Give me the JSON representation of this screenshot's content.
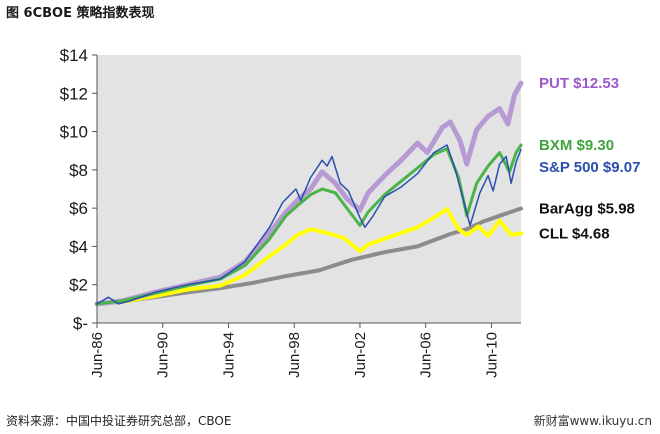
{
  "figure": {
    "title": "图  6CBOE 策略指数表现",
    "source": "资料来源：中国中投证券研究总部，CBOE",
    "watermark": "新财富www.ikuyu.cn"
  },
  "chart_data": {
    "type": "line",
    "title": "",
    "xlabel": "",
    "ylabel": "",
    "x_start": 1986.5,
    "x_end": 2012.3,
    "ylim": [
      0,
      14
    ],
    "y_ticks": [
      {
        "value": 14,
        "label": "$14"
      },
      {
        "value": 12,
        "label": "$12"
      },
      {
        "value": 10,
        "label": "$10"
      },
      {
        "value": 8,
        "label": "$8"
      },
      {
        "value": 6,
        "label": "$6"
      },
      {
        "value": 4,
        "label": "$4"
      },
      {
        "value": 2,
        "label": "$2"
      },
      {
        "value": 0,
        "label": "$-"
      }
    ],
    "x_ticks": [
      {
        "value": 1986.5,
        "label": "Jun-86"
      },
      {
        "value": 1990.5,
        "label": "Jun-90"
      },
      {
        "value": 1994.5,
        "label": "Jun-94"
      },
      {
        "value": 1998.5,
        "label": "Jun-98"
      },
      {
        "value": 2002.5,
        "label": "Jun-02"
      },
      {
        "value": 2006.5,
        "label": "Jun-06"
      },
      {
        "value": 2010.5,
        "label": "Jun-10"
      }
    ],
    "grid": false,
    "plot_background": "#e3e3e3",
    "series": [
      {
        "name": "BarAgg",
        "end_label": "BarAgg $5.98",
        "color": "#8c8c8c",
        "label_color": "#111111",
        "width": 4,
        "points": [
          [
            1986.5,
            1.0
          ],
          [
            1988,
            1.12
          ],
          [
            1990,
            1.35
          ],
          [
            1992,
            1.6
          ],
          [
            1994,
            1.82
          ],
          [
            1996,
            2.1
          ],
          [
            1998,
            2.45
          ],
          [
            2000,
            2.75
          ],
          [
            2002,
            3.3
          ],
          [
            2004,
            3.7
          ],
          [
            2006,
            4.0
          ],
          [
            2008,
            4.65
          ],
          [
            2009,
            4.9
          ],
          [
            2010,
            5.3
          ],
          [
            2011,
            5.6
          ],
          [
            2012.3,
            5.98
          ]
        ]
      },
      {
        "name": "CLL",
        "end_label": "CLL $4.68",
        "color": "#ffff00",
        "label_color": "#111111",
        "width": 4,
        "points": [
          [
            1986.5,
            1.0
          ],
          [
            1988,
            1.1
          ],
          [
            1990,
            1.4
          ],
          [
            1992,
            1.75
          ],
          [
            1994,
            1.95
          ],
          [
            1995.5,
            2.5
          ],
          [
            1997,
            3.5
          ],
          [
            1998,
            4.1
          ],
          [
            1998.7,
            4.6
          ],
          [
            1999.5,
            4.9
          ],
          [
            2000.5,
            4.7
          ],
          [
            2001.5,
            4.45
          ],
          [
            2002.5,
            3.75
          ],
          [
            2003,
            4.1
          ],
          [
            2004,
            4.4
          ],
          [
            2005,
            4.7
          ],
          [
            2006,
            5.0
          ],
          [
            2007,
            5.5
          ],
          [
            2007.8,
            5.95
          ],
          [
            2008.5,
            4.9
          ],
          [
            2009,
            4.6
          ],
          [
            2009.7,
            5.05
          ],
          [
            2010.3,
            4.55
          ],
          [
            2011,
            5.35
          ],
          [
            2011.7,
            4.6
          ],
          [
            2012.3,
            4.68
          ]
        ]
      },
      {
        "name": "PUT",
        "end_label": "PUT $12.53",
        "color": "#b79ad3",
        "label_color": "#9b59c9",
        "width": 5,
        "points": [
          [
            1986.5,
            1.0
          ],
          [
            1988,
            1.15
          ],
          [
            1990,
            1.6
          ],
          [
            1992,
            2.0
          ],
          [
            1994,
            2.4
          ],
          [
            1995.5,
            3.2
          ],
          [
            1997,
            4.7
          ],
          [
            1998,
            5.8
          ],
          [
            1998.8,
            6.5
          ],
          [
            1999.5,
            7.0
          ],
          [
            2000.2,
            7.9
          ],
          [
            2001,
            7.3
          ],
          [
            2001.7,
            6.5
          ],
          [
            2002.5,
            5.9
          ],
          [
            2003,
            6.8
          ],
          [
            2004,
            7.7
          ],
          [
            2005,
            8.5
          ],
          [
            2006,
            9.4
          ],
          [
            2006.6,
            8.9
          ],
          [
            2007.5,
            10.2
          ],
          [
            2008,
            10.5
          ],
          [
            2008.6,
            9.5
          ],
          [
            2009,
            8.3
          ],
          [
            2009.6,
            10.1
          ],
          [
            2010.3,
            10.8
          ],
          [
            2011,
            11.2
          ],
          [
            2011.5,
            10.4
          ],
          [
            2011.9,
            11.9
          ],
          [
            2012.3,
            12.53
          ]
        ]
      },
      {
        "name": "BXM",
        "end_label": "BXM $9.30",
        "color": "#4ab44a",
        "label_color": "#3fa33f",
        "width": 3,
        "points": [
          [
            1986.5,
            1.0
          ],
          [
            1988,
            1.15
          ],
          [
            1990,
            1.55
          ],
          [
            1992,
            1.95
          ],
          [
            1994,
            2.3
          ],
          [
            1995.5,
            3.0
          ],
          [
            1997,
            4.4
          ],
          [
            1998,
            5.6
          ],
          [
            1998.8,
            6.2
          ],
          [
            1999.5,
            6.7
          ],
          [
            2000.2,
            7.0
          ],
          [
            2001,
            6.8
          ],
          [
            2001.7,
            6.0
          ],
          [
            2002.5,
            5.1
          ],
          [
            2003,
            5.8
          ],
          [
            2004,
            6.7
          ],
          [
            2005,
            7.4
          ],
          [
            2006,
            8.1
          ],
          [
            2007,
            8.8
          ],
          [
            2007.8,
            9.1
          ],
          [
            2008.5,
            7.6
          ],
          [
            2009,
            5.6
          ],
          [
            2009.6,
            7.3
          ],
          [
            2010.3,
            8.2
          ],
          [
            2011,
            8.9
          ],
          [
            2011.6,
            7.9
          ],
          [
            2012,
            8.9
          ],
          [
            2012.3,
            9.3
          ]
        ]
      },
      {
        "name": "S&P 500",
        "end_label": "S&P 500 $9.07",
        "color": "#2a4fb0",
        "label_color": "#2a4fb0",
        "width": 1.5,
        "points": [
          [
            1986.5,
            1.0
          ],
          [
            1987.2,
            1.35
          ],
          [
            1987.8,
            1.0
          ],
          [
            1988.5,
            1.15
          ],
          [
            1990,
            1.6
          ],
          [
            1992,
            2.0
          ],
          [
            1994,
            2.3
          ],
          [
            1995.5,
            3.2
          ],
          [
            1997,
            5.0
          ],
          [
            1997.8,
            6.3
          ],
          [
            1998.6,
            7.0
          ],
          [
            1998.9,
            6.4
          ],
          [
            1999.5,
            7.6
          ],
          [
            2000.2,
            8.5
          ],
          [
            2000.5,
            8.2
          ],
          [
            2000.8,
            8.7
          ],
          [
            2001.3,
            7.3
          ],
          [
            2001.8,
            6.9
          ],
          [
            2002.5,
            5.5
          ],
          [
            2002.8,
            5.0
          ],
          [
            2003.3,
            5.6
          ],
          [
            2004,
            6.6
          ],
          [
            2005,
            7.1
          ],
          [
            2006,
            7.8
          ],
          [
            2007,
            8.9
          ],
          [
            2007.8,
            9.3
          ],
          [
            2008.3,
            8.0
          ],
          [
            2008.8,
            6.4
          ],
          [
            2009.2,
            5.1
          ],
          [
            2009.8,
            6.8
          ],
          [
            2010.3,
            7.7
          ],
          [
            2010.6,
            6.9
          ],
          [
            2011,
            8.3
          ],
          [
            2011.4,
            8.7
          ],
          [
            2011.7,
            7.3
          ],
          [
            2012,
            8.4
          ],
          [
            2012.3,
            9.07
          ]
        ]
      }
    ],
    "end_label_order": [
      "PUT",
      "BXM",
      "S&P 500",
      "BarAgg",
      "CLL"
    ]
  }
}
